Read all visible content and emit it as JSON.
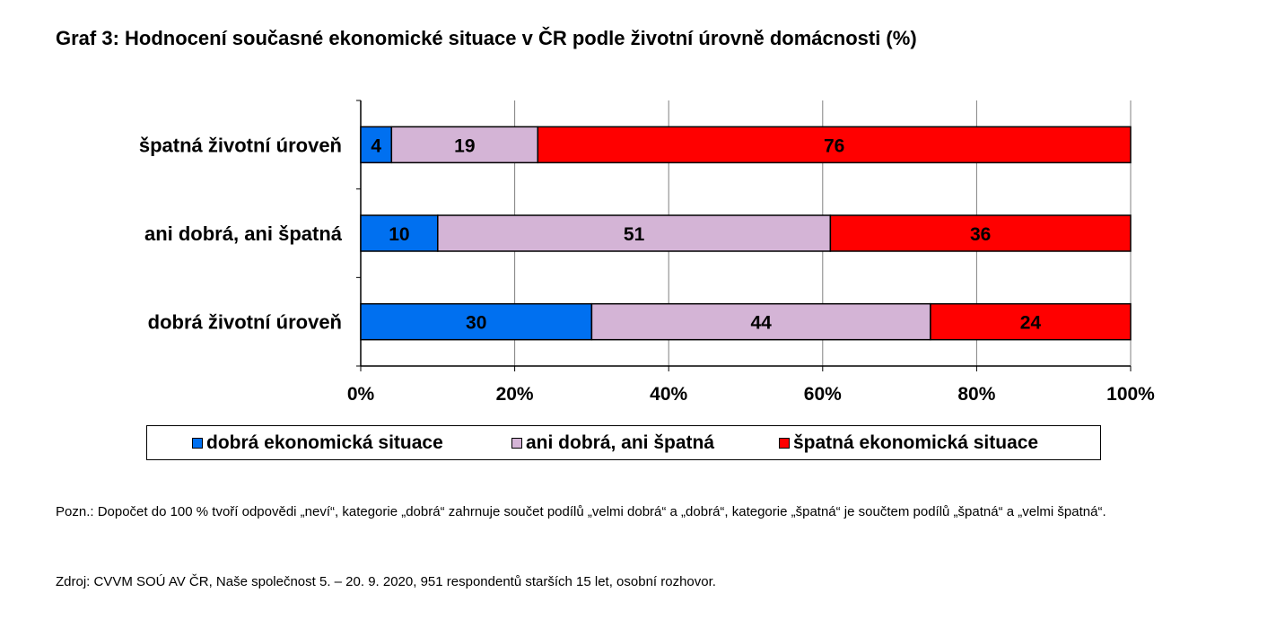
{
  "title": "Graf 3: Hodnocení současné ekonomické situace v ČR podle životní úrovně domácnosti (%)",
  "chart_data": {
    "type": "bar",
    "orientation": "horizontal",
    "stacked": true,
    "categories": [
      "špatná životní úroveň",
      "ani dobrá, ani špatná",
      "dobrá životní úroveň"
    ],
    "series": [
      {
        "name": "dobrá ekonomická situace",
        "color": "#0070F0",
        "values": [
          4,
          10,
          30
        ]
      },
      {
        "name": "ani dobrá, ani špatná",
        "color": "#D4B4D6",
        "values": [
          19,
          51,
          44
        ]
      },
      {
        "name": "špatná ekonomická situace",
        "color": "#FF0000",
        "values": [
          76,
          36,
          24
        ]
      }
    ],
    "xlim": [
      0,
      100
    ],
    "xticks": [
      "0%",
      "20%",
      "40%",
      "60%",
      "80%",
      "100%"
    ],
    "grid": true,
    "legend_position": "bottom"
  },
  "note": "Pozn.: Dopočet do 100 % tvoří odpovědi „neví“, kategorie „dobrá“ zahrnuje součet podílů „velmi dobrá“ a „dobrá“, kategorie „špatná“ je součtem podílů „špatná“ a „velmi špatná“.",
  "source": "Zdroj: CVVM SOÚ AV ČR, Naše společnost 5. – 20. 9. 2020, 951 respondentů starších 15 let, osobní rozhovor."
}
